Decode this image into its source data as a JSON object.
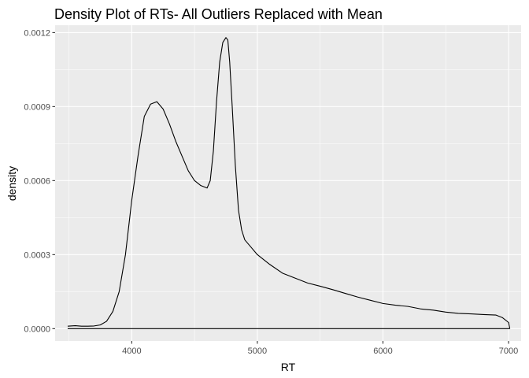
{
  "chart_data": {
    "type": "line",
    "title": "Density Plot of RTs- All Outliers Replaced with Mean",
    "xlabel": "RT",
    "ylabel": "density",
    "xlim": [
      3390,
      7100
    ],
    "ylim": [
      -5e-05,
      0.00123
    ],
    "x_ticks": [
      4000,
      5000,
      6000,
      7000
    ],
    "x_tick_labels": [
      "4000",
      "5000",
      "6000",
      "7000"
    ],
    "y_ticks": [
      0,
      0.0003,
      0.0006,
      0.0009,
      0.0012
    ],
    "y_tick_labels": [
      "0.0000",
      "0.0003",
      "0.0006",
      "0.0009",
      "0.0012"
    ],
    "grid": true,
    "panel_background": "#ebebeb",
    "grid_color": "#ffffff",
    "line_color": "#000000",
    "series": [
      {
        "x": [
          3490,
          3550,
          3600,
          3650,
          3700,
          3750,
          3800,
          3850,
          3900,
          3950,
          4000,
          4050,
          4100,
          4150,
          4200,
          4250,
          4300,
          4350,
          4400,
          4450,
          4500,
          4550,
          4600,
          4625,
          4650,
          4675,
          4700,
          4725,
          4750,
          4765,
          4780,
          4800,
          4825,
          4850,
          4875,
          4900,
          4950,
          5000,
          5100,
          5200,
          5300,
          5400,
          5500,
          5600,
          5700,
          5800,
          5900,
          6000,
          6100,
          6200,
          6300,
          6400,
          6500,
          6600,
          6700,
          6800,
          6900,
          6950,
          7000,
          7010
        ],
        "y": [
          1e-05,
          1.2e-05,
          1e-05,
          1e-05,
          1.1e-05,
          1.5e-05,
          3e-05,
          7e-05,
          0.00015,
          0.0003,
          0.00052,
          0.0007,
          0.00086,
          0.00091,
          0.00092,
          0.00089,
          0.00083,
          0.00076,
          0.0007,
          0.00064,
          0.0006,
          0.00058,
          0.00057,
          0.0006,
          0.00072,
          0.00092,
          0.00108,
          0.00116,
          0.00118,
          0.00117,
          0.00108,
          0.0009,
          0.00066,
          0.00048,
          0.0004,
          0.00036,
          0.00033,
          0.0003,
          0.00026,
          0.000225,
          0.000205,
          0.000185,
          0.000172,
          0.000158,
          0.000143,
          0.000128,
          0.000115,
          0.000102,
          9.5e-05,
          9e-05,
          8e-05,
          7.5e-05,
          6.7e-05,
          6.2e-05,
          6e-05,
          5.7e-05,
          5.5e-05,
          4.5e-05,
          2.5e-05,
          0.0
        ]
      }
    ],
    "baseline": {
      "x": [
        3490,
        7010
      ],
      "y": [
        0,
        0
      ]
    }
  }
}
